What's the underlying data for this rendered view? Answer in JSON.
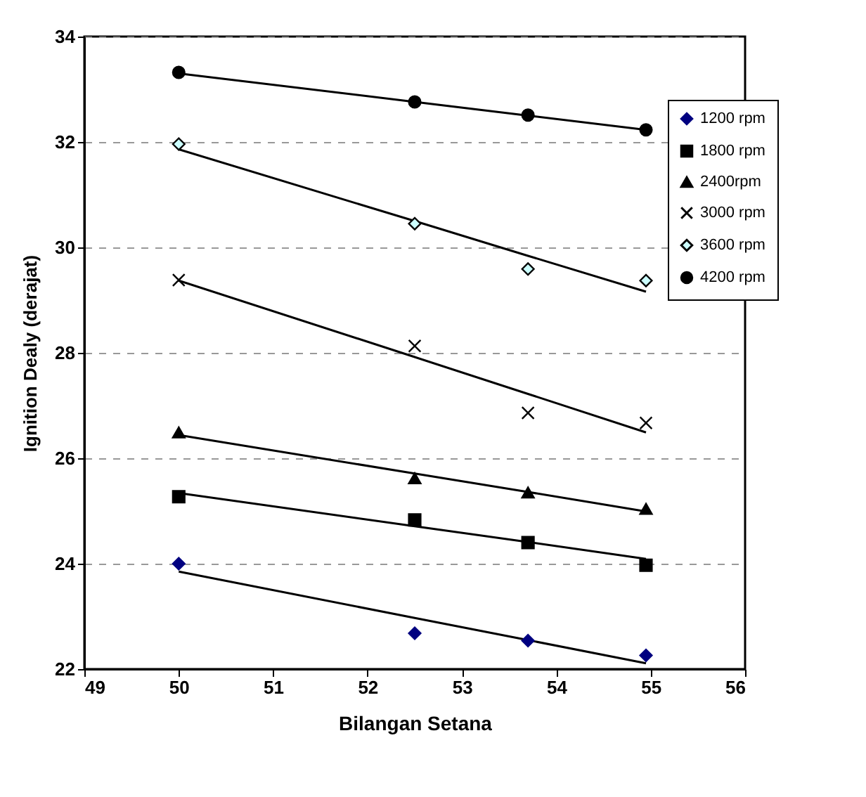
{
  "chart_data": {
    "type": "scatter",
    "xlabel": "Bilangan Setana",
    "ylabel": "Ignition Dealy (derajat)",
    "xlim": [
      49,
      56
    ],
    "xticks": [
      49,
      50,
      51,
      52,
      53,
      54,
      55,
      56
    ],
    "ylim": [
      22,
      34
    ],
    "yticks": [
      22,
      24,
      26,
      28,
      30,
      32,
      34
    ],
    "grid": "y",
    "legend": "top right",
    "x": [
      50,
      52.5,
      53.7,
      54.95
    ],
    "series": [
      {
        "name": "1200 rpm",
        "color": "#000080",
        "marker": "diamond",
        "values": [
          24.0,
          22.68,
          22.54,
          22.26
        ]
      },
      {
        "name": "1800 rpm",
        "color": "#000000",
        "marker": "square",
        "values": [
          25.27,
          24.83,
          24.4,
          23.97
        ]
      },
      {
        "name": "2400rpm",
        "color": "#000000",
        "marker": "triangle",
        "values": [
          26.49,
          25.62,
          25.35,
          25.04
        ]
      },
      {
        "name": "3000 rpm",
        "color": "#000000",
        "marker": "cross",
        "values": [
          29.38,
          28.13,
          26.86,
          26.67
        ]
      },
      {
        "name": "3600 rpm",
        "color": "#ccffff",
        "marker": "diamond",
        "values": [
          31.96,
          30.45,
          29.59,
          29.37
        ]
      },
      {
        "name": "4200 rpm",
        "color": "#000000",
        "marker": "circle",
        "values": [
          33.32,
          32.76,
          32.51,
          32.23
        ]
      },
      {
        "type": "line",
        "color": "#000000",
        "values": [
          23.85,
          22.97,
          22.55,
          22.11
        ]
      },
      {
        "type": "line",
        "color": "#000000",
        "values": [
          25.34,
          24.71,
          24.41,
          24.09
        ]
      },
      {
        "type": "line",
        "color": "#000000",
        "values": [
          26.44,
          25.71,
          25.36,
          24.99
        ]
      },
      {
        "type": "line",
        "color": "#000000",
        "values": [
          29.37,
          27.92,
          27.22,
          26.49
        ]
      },
      {
        "type": "line",
        "color": "#000000",
        "values": [
          31.86,
          30.5,
          29.84,
          29.16
        ]
      },
      {
        "type": "line",
        "color": "#000000",
        "values": [
          33.3,
          32.76,
          32.5,
          32.23
        ]
      }
    ]
  }
}
